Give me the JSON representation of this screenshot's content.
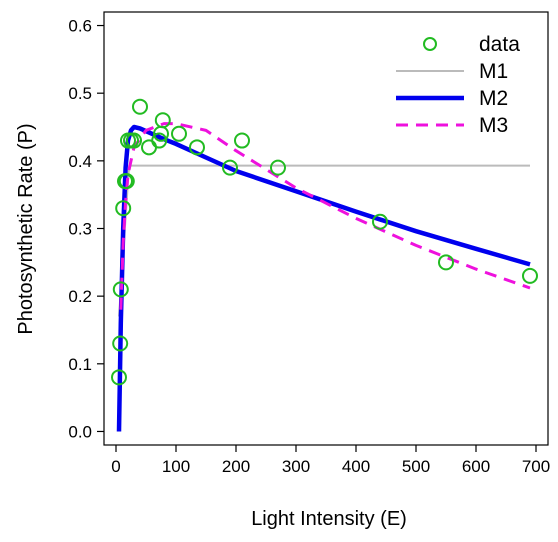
{
  "chart_data": {
    "type": "scatter",
    "xlabel": "Light Intensity (E)",
    "ylabel": "Photosynthetic Rate (P)",
    "xlim": [
      -20,
      720
    ],
    "ylim": [
      -0.02,
      0.62
    ],
    "xticks": [
      0,
      100,
      200,
      300,
      400,
      500,
      600,
      700
    ],
    "yticks": [
      0.0,
      0.1,
      0.2,
      0.3,
      0.4,
      0.5,
      0.6
    ],
    "ytick_labels": [
      "0.0",
      "0.1",
      "0.2",
      "0.3",
      "0.4",
      "0.5",
      "0.6"
    ],
    "grid": false,
    "legend_position": "top-right",
    "points": {
      "name": "data",
      "color": "#22bb22",
      "x": [
        5,
        7,
        8,
        12,
        15,
        18,
        20,
        25,
        30,
        40,
        55,
        72,
        75,
        78,
        105,
        135,
        190,
        210,
        270,
        440,
        550,
        690
      ],
      "y": [
        0.08,
        0.13,
        0.21,
        0.33,
        0.37,
        0.37,
        0.43,
        0.43,
        0.43,
        0.48,
        0.42,
        0.43,
        0.44,
        0.46,
        0.44,
        0.42,
        0.39,
        0.43,
        0.39,
        0.31,
        0.25,
        0.23
      ]
    },
    "series": [
      {
        "name": "M1",
        "color": "#bbbbbb",
        "style": "solid",
        "x": [
          5,
          20,
          22,
          690
        ],
        "y": [
          0.17,
          0.37,
          0.393,
          0.393
        ]
      },
      {
        "name": "M2",
        "color": "#0000ee",
        "style": "solid-thick",
        "x": [
          5,
          8,
          12,
          16,
          20,
          25,
          30,
          40,
          60,
          80,
          100,
          150,
          200,
          300,
          400,
          500,
          600,
          690
        ],
        "y": [
          0.0,
          0.16,
          0.3,
          0.39,
          0.43,
          0.445,
          0.45,
          0.448,
          0.44,
          0.432,
          0.425,
          0.405,
          0.385,
          0.355,
          0.325,
          0.296,
          0.27,
          0.247
        ]
      },
      {
        "name": "M3",
        "color": "#ee11dd",
        "style": "dashed",
        "x": [
          8,
          12,
          16,
          20,
          30,
          50,
          80,
          100,
          150,
          200,
          300,
          400,
          500,
          600,
          690
        ],
        "y": [
          0.18,
          0.28,
          0.34,
          0.38,
          0.42,
          0.445,
          0.455,
          0.455,
          0.445,
          0.415,
          0.36,
          0.315,
          0.275,
          0.24,
          0.212
        ]
      }
    ]
  }
}
